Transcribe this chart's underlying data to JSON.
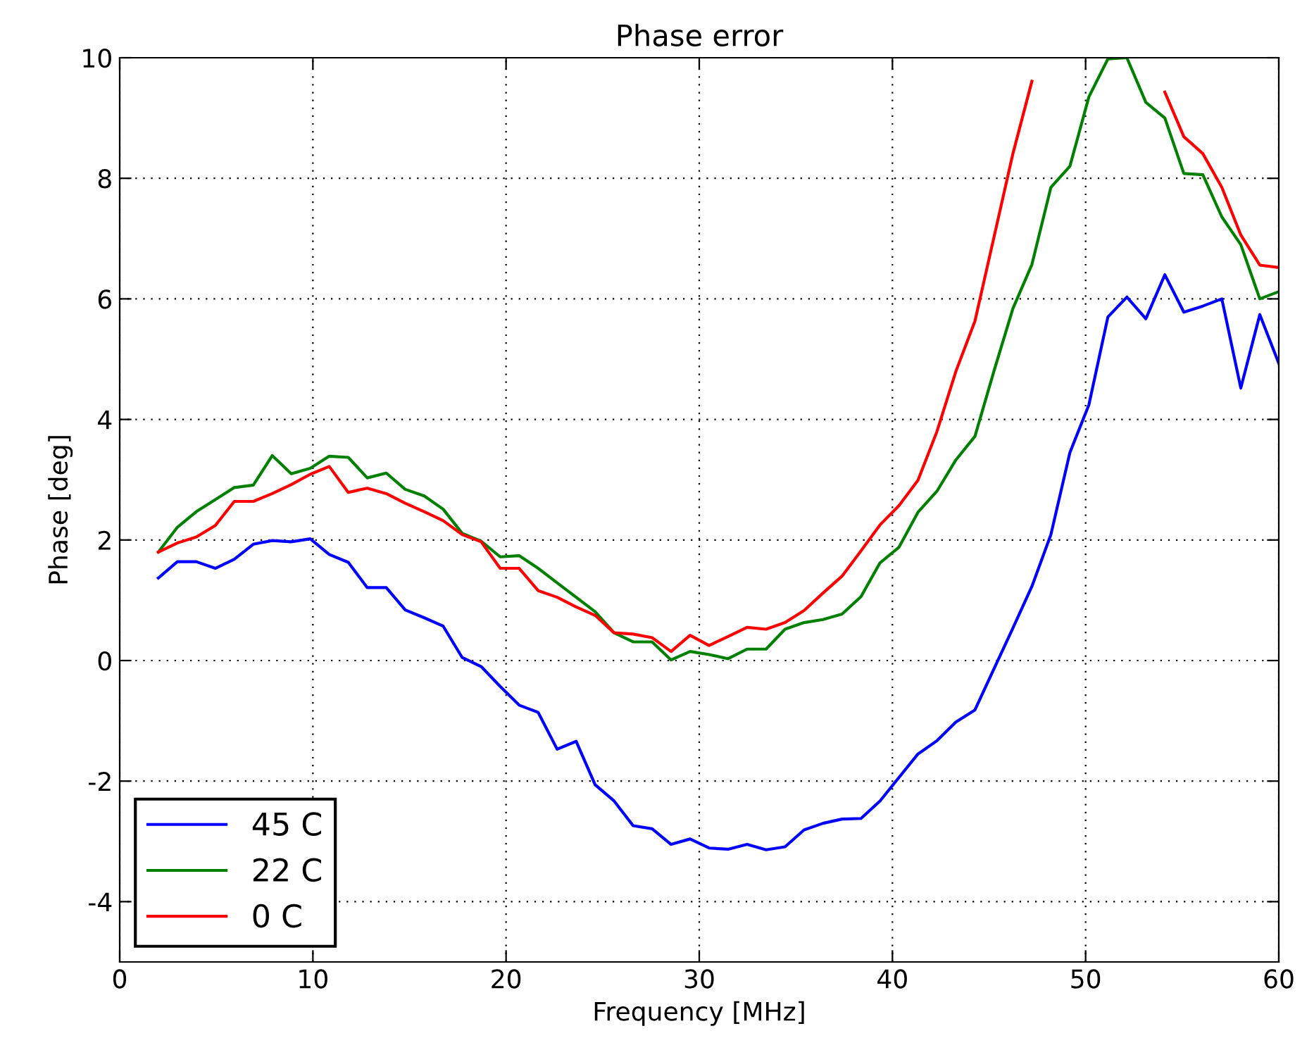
{
  "chart_data": {
    "type": "line",
    "title": "Phase error",
    "xlabel": "Frequency [MHz]",
    "ylabel": "Phase [deg]",
    "x": [
      2.0,
      2.983,
      3.966,
      4.949,
      5.932,
      6.915,
      7.898,
      8.881,
      9.864,
      10.847,
      11.831,
      12.814,
      13.797,
      14.78,
      15.763,
      16.746,
      17.729,
      18.712,
      19.695,
      20.678,
      21.661,
      22.644,
      23.627,
      24.61,
      25.593,
      26.576,
      27.559,
      28.542,
      29.525,
      30.508,
      31.492,
      32.475,
      33.458,
      34.441,
      35.424,
      36.407,
      37.39,
      38.373,
      39.356,
      40.339,
      41.322,
      42.305,
      43.288,
      44.271,
      45.254,
      46.237,
      47.22,
      48.203,
      49.186,
      50.169,
      51.153,
      52.136,
      53.119,
      54.102,
      55.085,
      56.068,
      57.051,
      58.034,
      59.017,
      60.0
    ],
    "series": [
      {
        "name": "45 C",
        "color": "#0000ff",
        "values": [
          1.37,
          1.64,
          1.64,
          1.53,
          1.68,
          1.93,
          1.99,
          1.97,
          2.02,
          1.76,
          1.63,
          1.21,
          1.21,
          0.84,
          0.71,
          0.57,
          0.05,
          -0.1,
          -0.43,
          -0.74,
          -0.86,
          -1.47,
          -1.34,
          -2.06,
          -2.33,
          -2.74,
          -2.79,
          -3.05,
          -2.96,
          -3.11,
          -3.13,
          -3.05,
          -3.14,
          -3.09,
          -2.81,
          -2.7,
          -2.63,
          -2.62,
          -2.33,
          -1.94,
          -1.55,
          -1.33,
          -1.02,
          -0.82,
          -0.14,
          0.54,
          1.23,
          2.09,
          3.45,
          4.24,
          5.7,
          6.03,
          5.67,
          6.4,
          5.78,
          5.88,
          6.0,
          4.52,
          5.74,
          4.93
        ]
      },
      {
        "name": "22 C",
        "color": "#008000",
        "values": [
          1.8,
          2.21,
          2.47,
          2.67,
          2.87,
          2.91,
          3.4,
          3.1,
          3.19,
          3.39,
          3.37,
          3.03,
          3.11,
          2.84,
          2.73,
          2.51,
          2.11,
          1.98,
          1.72,
          1.74,
          1.53,
          1.29,
          1.05,
          0.81,
          0.46,
          0.31,
          0.31,
          0.01,
          0.15,
          0.1,
          0.03,
          0.19,
          0.19,
          0.52,
          0.63,
          0.68,
          0.77,
          1.06,
          1.62,
          1.88,
          2.46,
          2.81,
          3.33,
          3.72,
          4.8,
          5.84,
          6.57,
          7.85,
          8.2,
          9.35,
          9.98,
          10.0,
          9.26,
          9.0,
          8.08,
          8.06,
          7.36,
          6.9,
          6.0,
          6.12
        ]
      },
      {
        "name": "0 C",
        "color": "#ff0000",
        "values": [
          1.8,
          1.95,
          2.05,
          2.24,
          2.64,
          2.64,
          2.77,
          2.92,
          3.09,
          3.22,
          2.79,
          2.86,
          2.77,
          2.61,
          2.47,
          2.32,
          2.09,
          1.97,
          1.53,
          1.53,
          1.16,
          1.05,
          0.89,
          0.75,
          0.46,
          0.44,
          0.38,
          0.15,
          0.42,
          0.25,
          0.4,
          0.55,
          0.52,
          0.63,
          0.83,
          1.12,
          1.4,
          1.82,
          2.25,
          2.57,
          2.99,
          3.8,
          4.8,
          5.63,
          7.02,
          8.41,
          9.61,
          null,
          null,
          null,
          null,
          null,
          null,
          9.43,
          8.69,
          8.41,
          7.85,
          7.06,
          6.56,
          6.52
        ]
      }
    ],
    "xlim": [
      0,
      60
    ],
    "xticks": [
      0,
      10,
      20,
      30,
      40,
      50,
      60
    ],
    "ylim": [
      -5,
      10
    ],
    "yticks": [
      -4,
      -2,
      0,
      2,
      4,
      6,
      8,
      10
    ],
    "grid": true,
    "legend": "bottom left",
    "line_style": "solid"
  }
}
